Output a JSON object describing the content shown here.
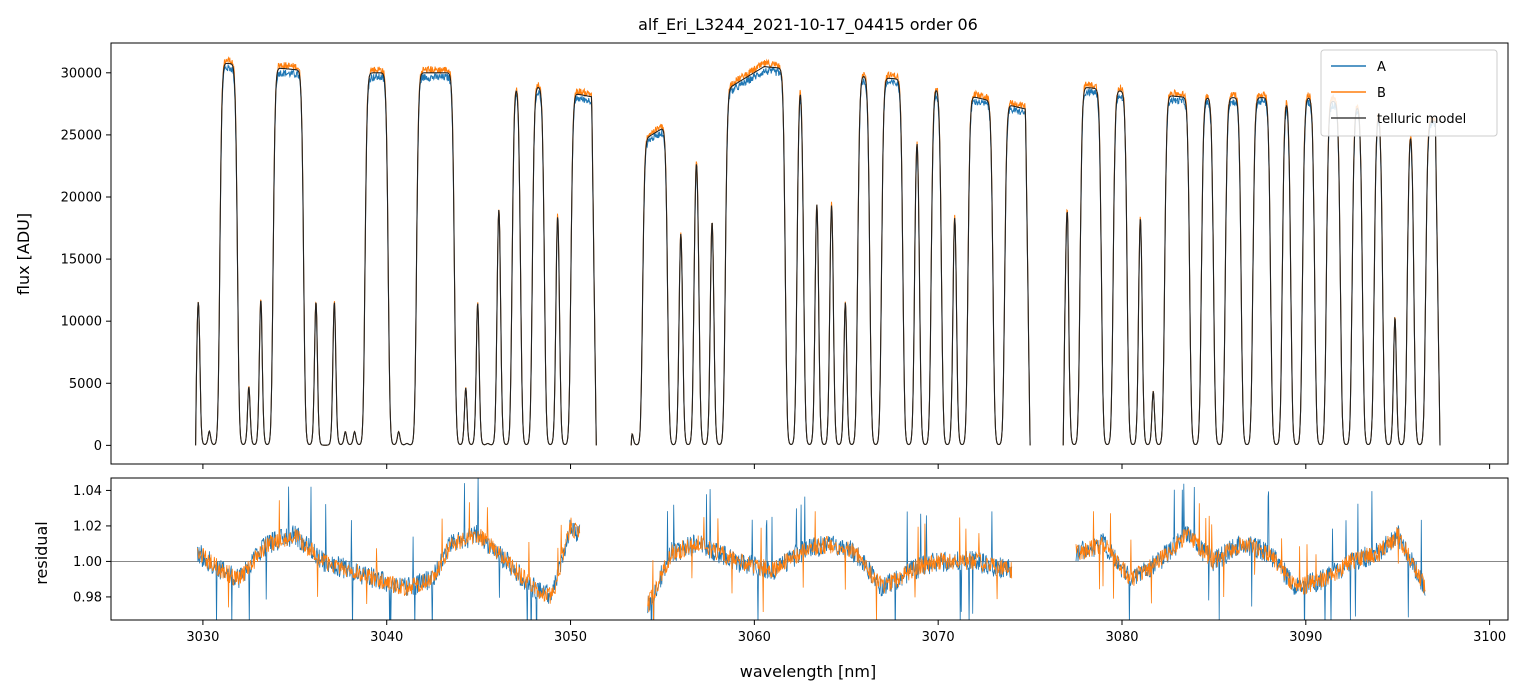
{
  "chart_data": [
    {
      "type": "line",
      "panel": "spectrum",
      "title": "alf_Eri_L3244_2021-10-17_04415  order 06",
      "xlabel": "",
      "ylabel": "flux [ADU]",
      "xlim": [
        3025,
        3101
      ],
      "ylim": [
        -1500,
        32400
      ],
      "xticks": [
        3030,
        3040,
        3050,
        3060,
        3070,
        3080,
        3090,
        3100
      ],
      "yticks": [
        0,
        5000,
        10000,
        15000,
        20000,
        25000,
        30000
      ],
      "ytick_labels": [
        "0",
        "5000",
        "10000",
        "15000",
        "20000",
        "25000",
        "30000"
      ],
      "legend_position": "top-right",
      "series": [
        {
          "name": "A",
          "color": "#1f77b4"
        },
        {
          "name": "B",
          "color": "#ff7f0e"
        },
        {
          "name": "telluric model",
          "color": "#444444"
        }
      ],
      "segments": [
        {
          "x": [
            3029.6,
            3051.4
          ],
          "continuum": [
            31000,
            30000,
            30000,
            28000
          ]
        },
        {
          "x": [
            3053.3,
            3075.0
          ],
          "continuum": [
            24000,
            30500,
            29500,
            27000
          ]
        },
        {
          "x": [
            3076.8,
            3097.3
          ],
          "continuum": [
            29000,
            28000,
            28000,
            26000
          ]
        }
      ],
      "absorption_lines_nm": [
        3030.1,
        3030.6,
        3032.2,
        3032.8,
        3033.5,
        3035.8,
        3036.5,
        3036.8,
        3037.5,
        3038.0,
        3038.5,
        3040.4,
        3040.9,
        3041.3,
        3044.0,
        3044.6,
        3045.3,
        3045.7,
        3046.5,
        3047.6,
        3048.9,
        3049.7,
        3053.6,
        3055.6,
        3056.4,
        3057.3,
        3058.1,
        3062.0,
        3063.0,
        3063.8,
        3064.6,
        3065.3,
        3066.6,
        3068.4,
        3069.3,
        3070.5,
        3071.3,
        3073.3,
        3077.4,
        3079.2,
        3080.6,
        3081.4,
        3082.0,
        3084.0,
        3085.3,
        3086.8,
        3088.4,
        3089.5,
        3090.8,
        3092.2,
        3093.4,
        3094.5,
        3095.2,
        3096.2
      ]
    },
    {
      "type": "line",
      "panel": "residual",
      "title": "",
      "xlabel": "wavelength [nm]",
      "ylabel": "residual",
      "xlim": [
        3025,
        3101
      ],
      "ylim": [
        0.967,
        1.047
      ],
      "xticks": [
        3030,
        3040,
        3050,
        3060,
        3070,
        3080,
        3090,
        3100
      ],
      "xtick_labels": [
        "3030",
        "3040",
        "3050",
        "3060",
        "3070",
        "3080",
        "3090",
        "3100"
      ],
      "yticks": [
        0.98,
        1.0,
        1.02,
        1.04
      ],
      "ytick_labels": [
        "0.98",
        "1.00",
        "1.02",
        "1.04"
      ],
      "reference_line": 1.0,
      "series": [
        {
          "name": "A",
          "color": "#1f77b4"
        },
        {
          "name": "B",
          "color": "#ff7f0e"
        }
      ],
      "segments": [
        {
          "x": [
            3029.7,
            3050.5
          ],
          "points": [
            [
              3029.7,
              1.005
            ],
            [
              3031,
              0.995
            ],
            [
              3032,
              0.99
            ],
            [
              3033.5,
              1.01
            ],
            [
              3035,
              1.015
            ],
            [
              3036.5,
              1.0
            ],
            [
              3038,
              0.995
            ],
            [
              3039.5,
              0.99
            ],
            [
              3041,
              0.985
            ],
            [
              3042.5,
              0.99
            ],
            [
              3043.5,
              1.01
            ],
            [
              3045,
              1.015
            ],
            [
              3046.5,
              1.0
            ],
            [
              3048,
              0.985
            ],
            [
              3049,
              0.98
            ],
            [
              3050,
              1.02
            ],
            [
              3050.5,
              1.015
            ]
          ]
        },
        {
          "x": [
            3054.2,
            3074.0
          ],
          "points": [
            [
              3054.2,
              0.975
            ],
            [
              3055.5,
              1.005
            ],
            [
              3057,
              1.01
            ],
            [
              3059,
              1.0
            ],
            [
              3061,
              0.995
            ],
            [
              3062.5,
              1.005
            ],
            [
              3064,
              1.01
            ],
            [
              3065.5,
              1.005
            ],
            [
              3067,
              0.985
            ],
            [
              3068.5,
              0.995
            ],
            [
              3070,
              1.0
            ],
            [
              3072,
              1.0
            ],
            [
              3074,
              0.995
            ]
          ]
        },
        {
          "x": [
            3077.5,
            3096.5
          ],
          "points": [
            [
              3077.5,
              1.005
            ],
            [
              3079,
              1.01
            ],
            [
              3080.5,
              0.99
            ],
            [
              3082,
              1.0
            ],
            [
              3083.5,
              1.015
            ],
            [
              3085,
              1.0
            ],
            [
              3086.5,
              1.01
            ],
            [
              3088,
              1.005
            ],
            [
              3089.5,
              0.985
            ],
            [
              3091,
              0.99
            ],
            [
              3092.5,
              1.0
            ],
            [
              3094,
              1.005
            ],
            [
              3095,
              1.015
            ],
            [
              3096.5,
              0.985
            ]
          ]
        }
      ]
    }
  ]
}
